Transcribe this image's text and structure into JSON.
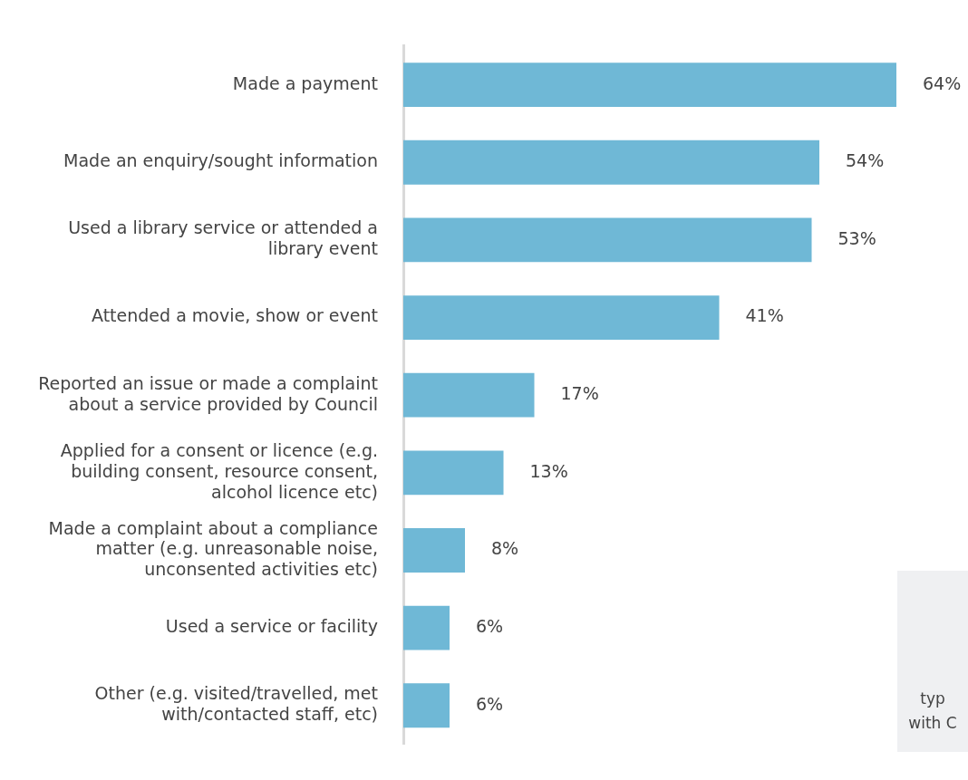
{
  "chart_data": {
    "type": "bar",
    "orientation": "horizontal",
    "categories": [
      "Made a payment",
      "Made an enquiry/sought information",
      "Used a library service or attended a library event",
      "Attended a movie, show or event",
      "Reported an issue or made a complaint about a service provided by Council",
      "Applied for a consent or licence (e.g. building consent, resource consent, alcohol licence etc)",
      "Made a complaint about a compliance matter (e.g. unreasonable noise, unconsented activities etc)",
      "Used a service or facility",
      "Other (e.g. visited/travelled, met with/contacted staff, etc)"
    ],
    "values": [
      64,
      54,
      53,
      41,
      17,
      13,
      8,
      6,
      6
    ],
    "value_labels": [
      "64%",
      "54%",
      "53%",
      "41%",
      "17%",
      "13%",
      "8%",
      "6%",
      "6%"
    ],
    "color": "#6fb8d6",
    "tick_labels": "y",
    "legend": false,
    "annotations": [
      "typ",
      "with C"
    ]
  }
}
